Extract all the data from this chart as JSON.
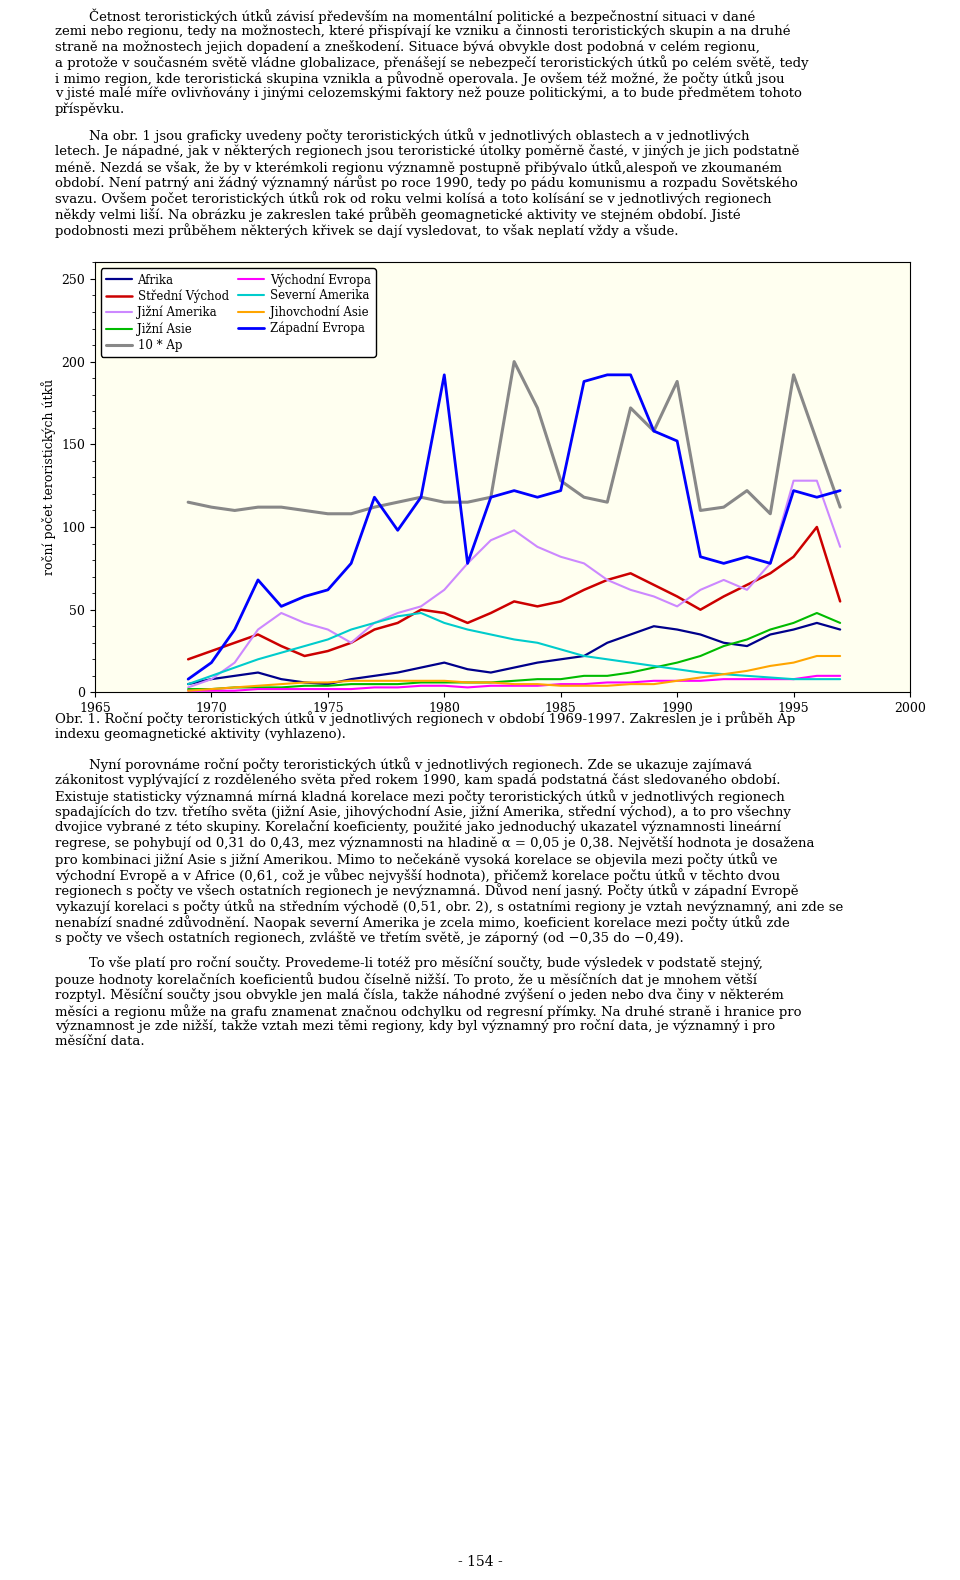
{
  "ylabel": "roční počet teroristických útků",
  "xlim": [
    1965,
    2000
  ],
  "ylim": [
    0,
    260
  ],
  "yticks": [
    0,
    50,
    100,
    150,
    200,
    250
  ],
  "xticks": [
    1965,
    1970,
    1975,
    1980,
    1985,
    1990,
    1995,
    2000
  ],
  "plot_bg_color": "#fffff0",
  "page_bg": "#ffffff",
  "series": {
    "Afrika": {
      "color": "#00008B",
      "linewidth": 1.6,
      "years": [
        1969,
        1970,
        1971,
        1972,
        1973,
        1974,
        1975,
        1976,
        1977,
        1978,
        1979,
        1980,
        1981,
        1982,
        1983,
        1984,
        1985,
        1986,
        1987,
        1988,
        1989,
        1990,
        1991,
        1992,
        1993,
        1994,
        1995,
        1996,
        1997
      ],
      "values": [
        5,
        8,
        10,
        12,
        8,
        6,
        5,
        8,
        10,
        12,
        15,
        18,
        14,
        12,
        15,
        18,
        20,
        22,
        30,
        35,
        40,
        38,
        35,
        30,
        28,
        35,
        38,
        42,
        38
      ]
    },
    "Střední Východ": {
      "color": "#CC0000",
      "linewidth": 1.8,
      "years": [
        1969,
        1970,
        1971,
        1972,
        1973,
        1974,
        1975,
        1976,
        1977,
        1978,
        1979,
        1980,
        1981,
        1982,
        1983,
        1984,
        1985,
        1986,
        1987,
        1988,
        1989,
        1990,
        1991,
        1992,
        1993,
        1994,
        1995,
        1996,
        1997
      ],
      "values": [
        20,
        25,
        30,
        35,
        28,
        22,
        25,
        30,
        38,
        42,
        50,
        48,
        42,
        48,
        55,
        52,
        55,
        62,
        68,
        72,
        65,
        58,
        50,
        58,
        65,
        72,
        82,
        100,
        55
      ]
    },
    "Jižní Amerika": {
      "color": "#CC88FF",
      "linewidth": 1.5,
      "years": [
        1969,
        1970,
        1971,
        1972,
        1973,
        1974,
        1975,
        1976,
        1977,
        1978,
        1979,
        1980,
        1981,
        1982,
        1983,
        1984,
        1985,
        1986,
        1987,
        1988,
        1989,
        1990,
        1991,
        1992,
        1993,
        1994,
        1995,
        1996,
        1997
      ],
      "values": [
        3,
        8,
        18,
        38,
        48,
        42,
        38,
        30,
        42,
        48,
        52,
        62,
        78,
        92,
        98,
        88,
        82,
        78,
        68,
        62,
        58,
        52,
        62,
        68,
        62,
        78,
        128,
        128,
        88
      ]
    },
    "Jižní Asie": {
      "color": "#00BB00",
      "linewidth": 1.5,
      "years": [
        1969,
        1970,
        1971,
        1972,
        1973,
        1974,
        1975,
        1976,
        1977,
        1978,
        1979,
        1980,
        1981,
        1982,
        1983,
        1984,
        1985,
        1986,
        1987,
        1988,
        1989,
        1990,
        1991,
        1992,
        1993,
        1994,
        1995,
        1996,
        1997
      ],
      "values": [
        2,
        2,
        3,
        3,
        3,
        4,
        4,
        5,
        5,
        5,
        6,
        6,
        6,
        6,
        7,
        8,
        8,
        10,
        10,
        12,
        15,
        18,
        22,
        28,
        32,
        38,
        42,
        48,
        42
      ]
    },
    "10 * Ap": {
      "color": "#888888",
      "linewidth": 2.2,
      "years": [
        1969,
        1970,
        1971,
        1972,
        1973,
        1974,
        1975,
        1976,
        1977,
        1978,
        1979,
        1980,
        1981,
        1982,
        1983,
        1984,
        1985,
        1986,
        1987,
        1988,
        1989,
        1990,
        1991,
        1992,
        1993,
        1994,
        1995,
        1996,
        1997
      ],
      "values": [
        115,
        112,
        110,
        112,
        112,
        110,
        108,
        108,
        112,
        115,
        118,
        115,
        115,
        118,
        200,
        172,
        128,
        118,
        115,
        172,
        158,
        188,
        110,
        112,
        122,
        108,
        192,
        152,
        112
      ]
    },
    "Východní Evropa": {
      "color": "#FF00FF",
      "linewidth": 1.5,
      "years": [
        1969,
        1970,
        1971,
        1972,
        1973,
        1974,
        1975,
        1976,
        1977,
        1978,
        1979,
        1980,
        1981,
        1982,
        1983,
        1984,
        1985,
        1986,
        1987,
        1988,
        1989,
        1990,
        1991,
        1992,
        1993,
        1994,
        1995,
        1996,
        1997
      ],
      "values": [
        1,
        1,
        1,
        2,
        2,
        2,
        2,
        2,
        3,
        3,
        4,
        4,
        3,
        4,
        4,
        4,
        5,
        5,
        6,
        6,
        7,
        7,
        7,
        8,
        8,
        8,
        8,
        10,
        10
      ]
    },
    "Severní Amerika": {
      "color": "#00CCCC",
      "linewidth": 1.5,
      "years": [
        1969,
        1970,
        1971,
        1972,
        1973,
        1974,
        1975,
        1976,
        1977,
        1978,
        1979,
        1980,
        1981,
        1982,
        1983,
        1984,
        1985,
        1986,
        1987,
        1988,
        1989,
        1990,
        1991,
        1992,
        1993,
        1994,
        1995,
        1996,
        1997
      ],
      "values": [
        5,
        10,
        15,
        20,
        24,
        28,
        32,
        38,
        42,
        46,
        48,
        42,
        38,
        35,
        32,
        30,
        26,
        22,
        20,
        18,
        16,
        14,
        12,
        11,
        10,
        9,
        8,
        8,
        8
      ]
    },
    "Jihovchodní Asie": {
      "color": "#FFA500",
      "linewidth": 1.5,
      "years": [
        1969,
        1970,
        1971,
        1972,
        1973,
        1974,
        1975,
        1976,
        1977,
        1978,
        1979,
        1980,
        1981,
        1982,
        1983,
        1984,
        1985,
        1986,
        1987,
        1988,
        1989,
        1990,
        1991,
        1992,
        1993,
        1994,
        1995,
        1996,
        1997
      ],
      "values": [
        1,
        2,
        3,
        4,
        5,
        6,
        6,
        7,
        7,
        7,
        7,
        7,
        6,
        6,
        5,
        5,
        4,
        4,
        4,
        5,
        5,
        7,
        9,
        11,
        13,
        16,
        18,
        22,
        22
      ]
    },
    "Západní Evropa": {
      "color": "#0000FF",
      "linewidth": 2.0,
      "years": [
        1969,
        1970,
        1971,
        1972,
        1973,
        1974,
        1975,
        1976,
        1977,
        1978,
        1979,
        1980,
        1981,
        1982,
        1983,
        1984,
        1985,
        1986,
        1987,
        1988,
        1989,
        1990,
        1991,
        1992,
        1993,
        1994,
        1995,
        1996,
        1997
      ],
      "values": [
        8,
        18,
        38,
        68,
        52,
        58,
        62,
        78,
        118,
        98,
        118,
        192,
        78,
        118,
        122,
        118,
        122,
        188,
        192,
        192,
        158,
        152,
        82,
        78,
        82,
        78,
        122,
        118,
        122
      ]
    }
  },
  "col1_keys": [
    "Afrika",
    "Střední Východ",
    "Jižní Amerika",
    "Jižní Asie",
    "10 * Ap"
  ],
  "col1_labels": [
    "Afrika",
    "Střední Východ",
    "Jižní Amerika",
    "Jižní Asie",
    "10 * Ap"
  ],
  "col2_keys": [
    "Východní Evropa",
    "Severní Amerika",
    "Jihovchodní Asie",
    "Západní Evropa"
  ],
  "col2_labels": [
    "Východní Evropa",
    "Severní Amerika",
    "Jihovchodní Asie",
    "Západní Evropa"
  ],
  "top_para1_lines": [
    "        Četnost teroristických útků závisí především na momentální politické a bezpečnostní situaci v dané",
    "zemi nebo regionu, tedy na možnostech, které přispívají ke vzniku a činnosti teroristických skupin a na druhé",
    "straně na možnostech jejich dopadení a zneškodení. Situace bývá obvykle dost podobná v celém regionu,",
    "a protože v současném světě vládne globalizace, přenášejí se nebezpečí teroristických útků po celém světě, tedy",
    "i mimo region, kde teroristická skupina vznikla a původně operovala. Je ovšem též možné, že počty útků jsou",
    "v jisté malé míře ovlivňovány i jinými celozemskými faktory než pouze politickými, a to bude předmětem tohoto",
    "příspěvku."
  ],
  "top_para2_lines": [
    "        Na obr. 1 jsou graficky uvedeny počty teroristických útků v jednotlivých oblastech a v jednotlivých",
    "letech. Je nápadné, jak v některých regionech jsou teroristické útolky poměrně časté, v jiných je jich podstatně",
    "méně. Nezdá se však, že by v kterémkoli regionu významně postupně přibývalo útků,alespoň ve zkoumaném",
    "období. Není patrný ani žádný významný nárůst po roce 1990, tedy po pádu komunismu a rozpadu Sovětského",
    "svazu. Ovšem počet teroristických útků rok od roku velmi kolísá a toto kolísání se v jednotlivých regionech",
    "někdy velmi liší. Na obrázku je zakreslen také průběh geomagnetické aktivity ve stejném období. Jisté",
    "podobnosti mezi průběhem některých křivek se dají vysledovat, to však neplatí vždy a všude."
  ],
  "caption_lines": [
    "Obr. 1. Roční počty teroristických útků v jednotlivých regionech v období 1969-1997. Zakreslen je i průběh Ap",
    "indexu geomagnetické aktivity (vyhlazeno)."
  ],
  "bottom_para1_lines": [
    "        Nyní porovnáme roční počty teroristických útků v jednotlivých regionech. Zde se ukazuje zajímavá",
    "zákonitost vyplývající z rozděleného světa před rokem 1990, kam spadá podstatná část sledovaného období.",
    "Existuje statisticky významná mírná kladná korelace mezi počty teroristických útků v jednotlivých regionech",
    "spadajících do tzv. třetího světa (jižní Asie, jihovýchodní Asie, jižní Amerika, střední východ), a to pro všechny",
    "dvojice vybrané z této skupiny. Korelační koeficienty, použité jako jednoduchý ukazatel významnosti lineární",
    "regrese, se pohybují od 0,31 do 0,43, mez významnosti na hladině α = 0,05 je 0,38. Největší hodnota je dosažena",
    "pro kombinaci jižní Asie s jižní Amerikou. Mimo to nečekáně vysoká korelace se objevila mezi počty útků ve",
    "východní Evropě a v Africe (0,61, což je vůbec nejvyšší hodnota), přičemž korelace počtu útků v těchto dvou",
    "regionech s počty ve všech ostatních regionech je nevýznamná. Důvod není jasný. Počty útků v západní Evropě",
    "vykazují korelaci s počty útků na středním východě (0,51, obr. 2), s ostatními regiony je vztah nevýznamný, ani zde se",
    "nenabízí snadné zdůvodnění. Naopak severní Amerika je zcela mimo, koeficient korelace mezi počty útků zde",
    "s počty ve všech ostatních regionech, zvláště ve třetím světě, je záporný (od −0,35 do −0,49)."
  ],
  "bottom_para2_lines": [
    "        To vše platí pro roční součty. Provedeme-li totéž pro měsíční součty, bude výsledek v podstatě stejný,",
    "pouze hodnoty korelačních koeficientů budou číselně nižší. To proto, že u měsíčních dat je mnohem větší",
    "rozptyl. Měsíční součty jsou obvykle jen malá čísla, takže náhodné zvýšení o jeden nebo dva činy v některém",
    "měsíci a regionu může na grafu znamenat značnou odchylku od regresní přímky. Na druhé straně i hranice pro",
    "významnost je zde nižší, takže vztah mezi těmi regiony, kdy byl významný pro roční data, je významný i pro",
    "měsíční data."
  ],
  "page_number": "- 154 -"
}
